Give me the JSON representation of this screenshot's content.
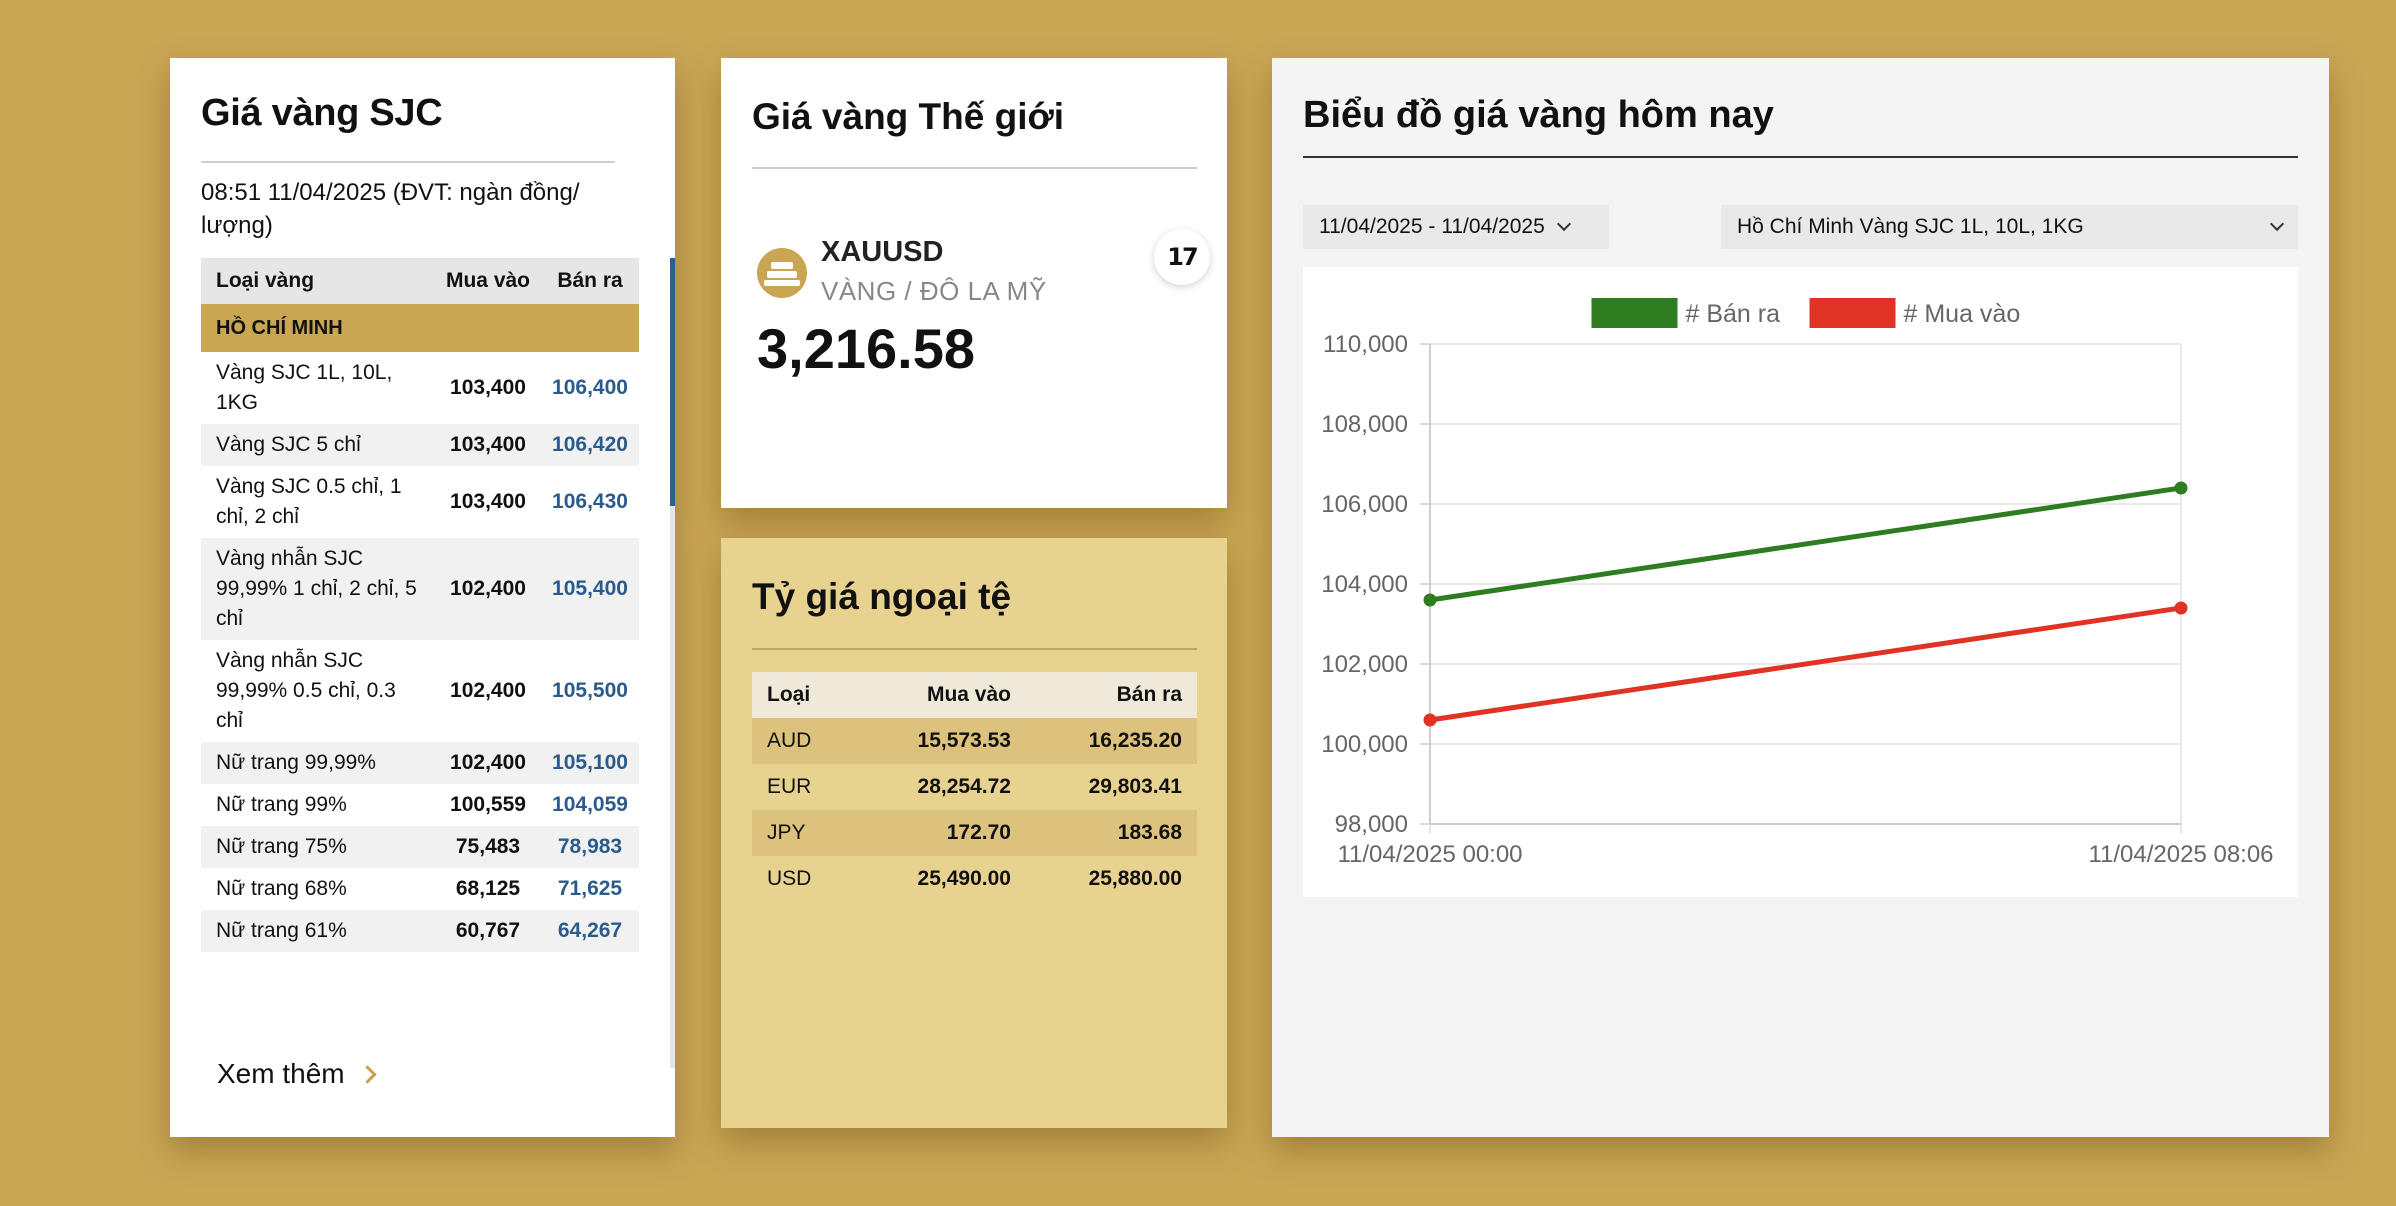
{
  "sjc": {
    "title": "Giá vàng SJC",
    "updated": "08:51 11/04/2025 (ĐVT: ngàn đồng/ lượng)",
    "headers": {
      "type": "Loại vàng",
      "buy": "Mua vào",
      "sell": "Bán ra"
    },
    "region": "HỒ CHÍ MINH",
    "rows": [
      {
        "name": "Vàng SJC 1L, 10L, 1KG",
        "buy": "103,400",
        "sell": "106,400"
      },
      {
        "name": "Vàng SJC 5 chỉ",
        "buy": "103,400",
        "sell": "106,420"
      },
      {
        "name": "Vàng SJC 0.5 chỉ, 1 chỉ, 2 chỉ",
        "buy": "103,400",
        "sell": "106,430"
      },
      {
        "name": "Vàng nhẫn SJC 99,99% 1 chỉ, 2 chỉ, 5 chỉ",
        "buy": "102,400",
        "sell": "105,400"
      },
      {
        "name": "Vàng nhẫn SJC 99,99% 0.5 chỉ, 0.3 chỉ",
        "buy": "102,400",
        "sell": "105,500"
      },
      {
        "name": "Nữ trang 99,99%",
        "buy": "102,400",
        "sell": "105,100"
      },
      {
        "name": "Nữ trang 99%",
        "buy": "100,559",
        "sell": "104,059"
      },
      {
        "name": "Nữ trang 75%",
        "buy": "75,483",
        "sell": "78,983"
      },
      {
        "name": "Nữ trang 68%",
        "buy": "68,125",
        "sell": "71,625"
      },
      {
        "name": "Nữ trang 61%",
        "buy": "60,767",
        "sell": "64,267"
      }
    ],
    "more_label": "Xem thêm"
  },
  "world": {
    "title": "Giá vàng Thế giới",
    "symbol": "XAUUSD",
    "description": "VÀNG / ĐÔ LA MỸ",
    "price": "3,216.58",
    "widget_badge": "17"
  },
  "fx": {
    "title": "Tỷ giá ngoại tệ",
    "headers": {
      "type": "Loại",
      "buy": "Mua vào",
      "sell": "Bán ra"
    },
    "rows": [
      {
        "code": "AUD",
        "buy": "15,573.53",
        "sell": "16,235.20"
      },
      {
        "code": "EUR",
        "buy": "28,254.72",
        "sell": "29,803.41"
      },
      {
        "code": "JPY",
        "buy": "172.70",
        "sell": "183.68"
      },
      {
        "code": "USD",
        "buy": "25,490.00",
        "sell": "25,880.00"
      }
    ]
  },
  "chart_panel": {
    "title": "Biểu đồ giá vàng hôm nay",
    "date_range": "11/04/2025 - 11/04/2025",
    "series_select": "Hồ Chí Minh Vàng SJC 1L, 10L, 1KG"
  },
  "chart_data": {
    "type": "line",
    "x": [
      "11/04/2025 00:00",
      "11/04/2025 08:06"
    ],
    "series": [
      {
        "name": "# Bán ra",
        "color": "#2e7d21",
        "values": [
          103600,
          106400
        ]
      },
      {
        "name": "# Mua vào",
        "color": "#e03325",
        "values": [
          100600,
          103400
        ]
      }
    ],
    "ylim": [
      98000,
      110000
    ],
    "yticks": [
      98000,
      100000,
      102000,
      104000,
      106000,
      108000,
      110000
    ],
    "ytick_labels": [
      "98,000",
      "100,000",
      "102,000",
      "104,000",
      "106,000",
      "108,000",
      "110,000"
    ],
    "grid": true,
    "legend_position": "top"
  }
}
